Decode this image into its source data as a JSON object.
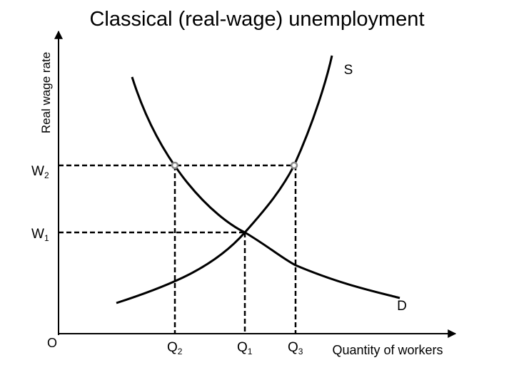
{
  "title": "Classical (real-wage) unemployment",
  "axes": {
    "y_label": "Real wage rate",
    "x_label": "Quantity of workers",
    "origin": "O"
  },
  "curves": {
    "supply": "S",
    "demand": "D"
  },
  "wage_levels": [
    {
      "base": "W",
      "sub": "2"
    },
    {
      "base": "W",
      "sub": "1"
    }
  ],
  "quantities": [
    {
      "base": "Q",
      "sub": "2"
    },
    {
      "base": "Q",
      "sub": "1"
    },
    {
      "base": "Q",
      "sub": "3"
    }
  ]
}
